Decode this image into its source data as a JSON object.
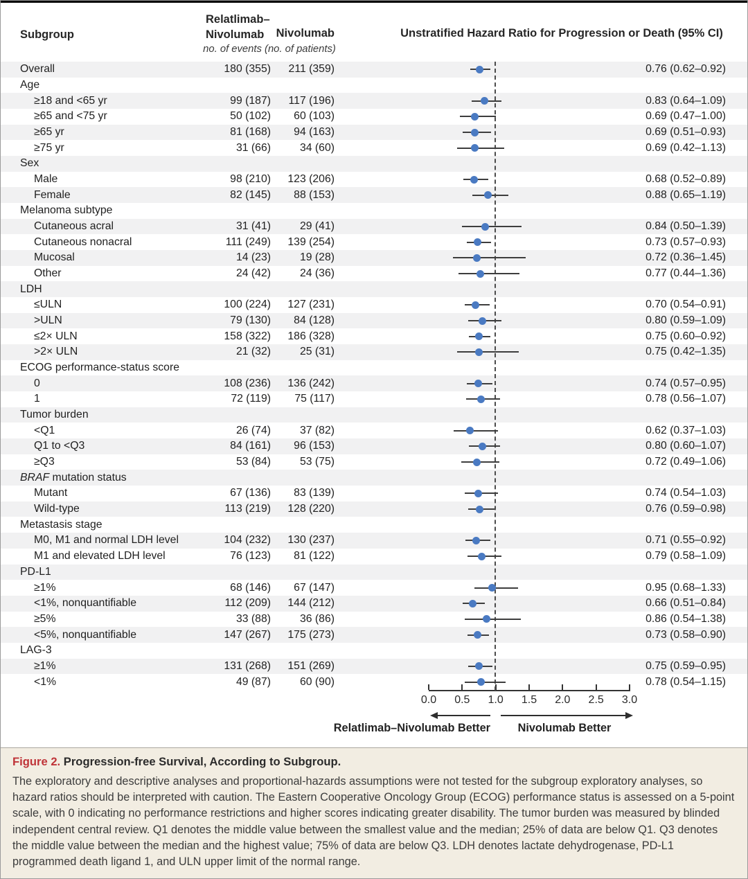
{
  "figure": {
    "columns": {
      "subgroup": "Subgroup",
      "treatment_line1": "Relatlimab–",
      "treatment_line2": "Nivolumab",
      "control": "Nivolumab",
      "hr_header": "Unstratified Hazard Ratio for Progression or Death (95% CI)",
      "events_note": "no. of events (no. of patients)"
    },
    "axis": {
      "left_better": "Relatlimab–Nivolumab Better",
      "right_better": "Nivolumab Better"
    },
    "caption": {
      "label": "Figure 2.",
      "title": "Progression-free Survival, According to Subgroup.",
      "body": "The exploratory and descriptive analyses and proportional-hazards assumptions were not tested for the subgroup exploratory analyses, so hazard ratios should be interpreted with caution. The Eastern Cooperative Oncology Group (ECOG) performance status is assessed on a 5-point scale, with 0 indicating no performance restrictions and higher scores indicating greater disability. The tumor burden was measured by blinded independent central review. Q1 denotes the middle value between the smallest value and the median; 25% of data are below Q1. Q3 denotes the middle value between the median and the highest value; 75% of data are below Q3. LDH denotes lactate dehydrogenase, PD-L1 programmed death ligand 1, and ULN upper limit of the normal range."
    }
  },
  "chart_data": {
    "type": "scatter",
    "variant": "forest-plot",
    "title": "Unstratified Hazard Ratio for Progression or Death (95% CI)",
    "xlabel": "Hazard Ratio",
    "x_axis": {
      "min": 0.0,
      "max": 3.0,
      "ticks": [
        0.0,
        0.5,
        1.0,
        1.5,
        2.0,
        2.5,
        3.0
      ],
      "tick_labels": [
        "0.0",
        "0.5",
        "1.0",
        "1.5",
        "2.0",
        "2.5",
        "3.0"
      ],
      "reference_line": 1.0
    },
    "marker_color": "#4a7ac2",
    "rows": [
      {
        "kind": "data",
        "label": "Overall",
        "indent": 0,
        "rn": "180 (355)",
        "nivo": "211 (359)",
        "hr": 0.76,
        "lo": 0.62,
        "hi": 0.92,
        "hr_text": "0.76 (0.62–0.92)"
      },
      {
        "kind": "group",
        "label": "Age"
      },
      {
        "kind": "data",
        "label": "≥18 and <65  yr",
        "indent": 1,
        "rn": "99 (187)",
        "nivo": "117 (196)",
        "hr": 0.83,
        "lo": 0.64,
        "hi": 1.09,
        "hr_text": "0.83 (0.64–1.09)"
      },
      {
        "kind": "data",
        "label": "≥65 and <75  yr",
        "indent": 1,
        "rn": "50 (102)",
        "nivo": "60 (103)",
        "hr": 0.69,
        "lo": 0.47,
        "hi": 1.0,
        "hr_text": "0.69 (0.47–1.00)"
      },
      {
        "kind": "data",
        "label": "≥65  yr",
        "indent": 1,
        "rn": "81 (168)",
        "nivo": "94 (163)",
        "hr": 0.69,
        "lo": 0.51,
        "hi": 0.93,
        "hr_text": "0.69 (0.51–0.93)"
      },
      {
        "kind": "data",
        "label": "≥75 yr",
        "indent": 1,
        "rn": "31 (66)",
        "nivo": "34 (60)",
        "hr": 0.69,
        "lo": 0.42,
        "hi": 1.13,
        "hr_text": "0.69 (0.42–1.13)"
      },
      {
        "kind": "group",
        "label": "Sex"
      },
      {
        "kind": "data",
        "label": "Male",
        "indent": 1,
        "rn": "98 (210)",
        "nivo": "123 (206)",
        "hr": 0.68,
        "lo": 0.52,
        "hi": 0.89,
        "hr_text": "0.68 (0.52–0.89)"
      },
      {
        "kind": "data",
        "label": "Female",
        "indent": 1,
        "rn": "82 (145)",
        "nivo": "88 (153)",
        "hr": 0.88,
        "lo": 0.65,
        "hi": 1.19,
        "hr_text": "0.88 (0.65–1.19)"
      },
      {
        "kind": "group",
        "label": "Melanoma subtype"
      },
      {
        "kind": "data",
        "label": "Cutaneous acral",
        "indent": 1,
        "rn": "31 (41)",
        "nivo": "29 (41)",
        "hr": 0.84,
        "lo": 0.5,
        "hi": 1.39,
        "hr_text": "0.84 (0.50–1.39)"
      },
      {
        "kind": "data",
        "label": "Cutaneous nonacral",
        "indent": 1,
        "rn": "111 (249)",
        "nivo": "139 (254)",
        "hr": 0.73,
        "lo": 0.57,
        "hi": 0.93,
        "hr_text": "0.73 (0.57–0.93)"
      },
      {
        "kind": "data",
        "label": "Mucosal",
        "indent": 1,
        "rn": "14 (23)",
        "nivo": "19 (28)",
        "hr": 0.72,
        "lo": 0.36,
        "hi": 1.45,
        "hr_text": "0.72 (0.36–1.45)"
      },
      {
        "kind": "data",
        "label": "Other",
        "indent": 1,
        "rn": "24 (42)",
        "nivo": "24 (36)",
        "hr": 0.77,
        "lo": 0.44,
        "hi": 1.36,
        "hr_text": "0.77 (0.44–1.36)"
      },
      {
        "kind": "group",
        "label": "LDH"
      },
      {
        "kind": "data",
        "label": "≤ULN",
        "indent": 1,
        "rn": "100 (224)",
        "nivo": "127 (231)",
        "hr": 0.7,
        "lo": 0.54,
        "hi": 0.91,
        "hr_text": "0.70 (0.54–0.91)"
      },
      {
        "kind": "data",
        "label": ">ULN",
        "indent": 1,
        "rn": "79 (130)",
        "nivo": "84 (128)",
        "hr": 0.8,
        "lo": 0.59,
        "hi": 1.09,
        "hr_text": "0.80 (0.59–1.09)"
      },
      {
        "kind": "data",
        "label": "≤2×  ULN",
        "indent": 1,
        "rn": "158 (322)",
        "nivo": "186 (328)",
        "hr": 0.75,
        "lo": 0.6,
        "hi": 0.92,
        "hr_text": "0.75 (0.60–0.92)"
      },
      {
        "kind": "data",
        "label": ">2×  ULN",
        "indent": 1,
        "rn": "21 (32)",
        "nivo": "25 (31)",
        "hr": 0.75,
        "lo": 0.42,
        "hi": 1.35,
        "hr_text": "0.75 (0.42–1.35)"
      },
      {
        "kind": "group",
        "label": "ECOG performance-status score"
      },
      {
        "kind": "data",
        "label": "0",
        "indent": 1,
        "rn": "108 (236)",
        "nivo": "136 (242)",
        "hr": 0.74,
        "lo": 0.57,
        "hi": 0.95,
        "hr_text": "0.74 (0.57–0.95)"
      },
      {
        "kind": "data",
        "label": "1",
        "indent": 1,
        "rn": "72 (119)",
        "nivo": "75 (117)",
        "hr": 0.78,
        "lo": 0.56,
        "hi": 1.07,
        "hr_text": "0.78 (0.56–1.07)"
      },
      {
        "kind": "group",
        "label": "Tumor burden"
      },
      {
        "kind": "data",
        "label": "<Q1",
        "indent": 1,
        "rn": "26 (74)",
        "nivo": "37 (82)",
        "hr": 0.62,
        "lo": 0.37,
        "hi": 1.03,
        "hr_text": "0.62 (0.37–1.03)"
      },
      {
        "kind": "data",
        "label": "Q1 to <Q3",
        "indent": 1,
        "rn": "84 (161)",
        "nivo": "96 (153)",
        "hr": 0.8,
        "lo": 0.6,
        "hi": 1.07,
        "hr_text": "0.80 (0.60–1.07)"
      },
      {
        "kind": "data",
        "label": "≥Q3",
        "indent": 1,
        "rn": "53 (84)",
        "nivo": "53 (75)",
        "hr": 0.72,
        "lo": 0.49,
        "hi": 1.06,
        "hr_text": "0.72 (0.49–1.06)"
      },
      {
        "kind": "group",
        "label": "BRAF mutation status",
        "italic_prefix": "BRAF"
      },
      {
        "kind": "data",
        "label": "Mutant",
        "indent": 1,
        "rn": "67 (136)",
        "nivo": "83 (139)",
        "hr": 0.74,
        "lo": 0.54,
        "hi": 1.03,
        "hr_text": "0.74 (0.54–1.03)"
      },
      {
        "kind": "data",
        "label": "Wild-type",
        "indent": 1,
        "rn": "113 (219)",
        "nivo": "128 (220)",
        "hr": 0.76,
        "lo": 0.59,
        "hi": 0.98,
        "hr_text": "0.76 (0.59–0.98)"
      },
      {
        "kind": "group",
        "label": "Metastasis stage"
      },
      {
        "kind": "data",
        "label": "M0, M1 and normal LDH level",
        "indent": 1,
        "rn": "104 (232)",
        "nivo": "130 (237)",
        "hr": 0.71,
        "lo": 0.55,
        "hi": 0.92,
        "hr_text": "0.71 (0.55–0.92)"
      },
      {
        "kind": "data",
        "label": "M1 and elevated LDH level",
        "indent": 1,
        "rn": "76 (123)",
        "nivo": "81 (122)",
        "hr": 0.79,
        "lo": 0.58,
        "hi": 1.09,
        "hr_text": "0.79 (0.58–1.09)"
      },
      {
        "kind": "group",
        "label": "PD-L1"
      },
      {
        "kind": "data",
        "label": "≥1%",
        "indent": 1,
        "rn": "68 (146)",
        "nivo": "67 (147)",
        "hr": 0.95,
        "lo": 0.68,
        "hi": 1.33,
        "hr_text": "0.95 (0.68–1.33)"
      },
      {
        "kind": "data",
        "label": "<1%, nonquantifiable",
        "indent": 1,
        "rn": "112 (209)",
        "nivo": "144 (212)",
        "hr": 0.66,
        "lo": 0.51,
        "hi": 0.84,
        "hr_text": "0.66 (0.51–0.84)"
      },
      {
        "kind": "data",
        "label": "≥5%",
        "indent": 1,
        "rn": "33 (88)",
        "nivo": "36 (86)",
        "hr": 0.86,
        "lo": 0.54,
        "hi": 1.38,
        "hr_text": "0.86 (0.54–1.38)"
      },
      {
        "kind": "data",
        "label": "<5%, nonquantifiable",
        "indent": 1,
        "rn": "147 (267)",
        "nivo": "175 (273)",
        "hr": 0.73,
        "lo": 0.58,
        "hi": 0.9,
        "hr_text": "0.73 (0.58–0.90)"
      },
      {
        "kind": "group",
        "label": "LAG-3"
      },
      {
        "kind": "data",
        "label": "≥1%",
        "indent": 1,
        "rn": "131 (268)",
        "nivo": "151 (269)",
        "hr": 0.75,
        "lo": 0.59,
        "hi": 0.95,
        "hr_text": "0.75 (0.59–0.95)"
      },
      {
        "kind": "data",
        "label": "<1%",
        "indent": 1,
        "rn": "49 (87)",
        "nivo": "60 (90)",
        "hr": 0.78,
        "lo": 0.54,
        "hi": 1.15,
        "hr_text": "0.78 (0.54–1.15)"
      }
    ]
  }
}
